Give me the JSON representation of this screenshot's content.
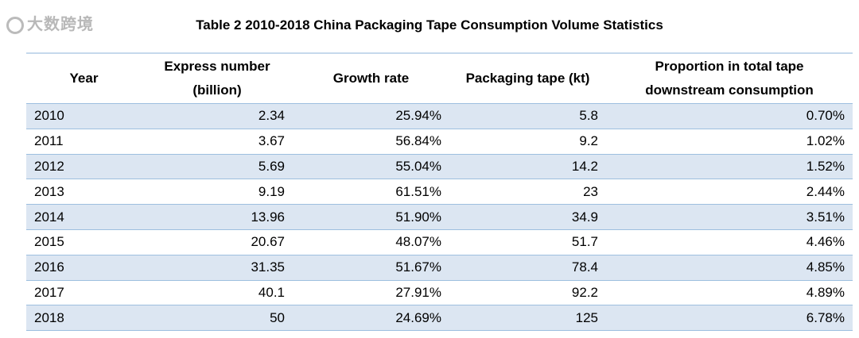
{
  "title": "Table 2 2010-2018 China Packaging Tape Consumption Volume Statistics",
  "headers": [
    "Year",
    "Express number (billion)",
    "Growth rate",
    "Packaging tape (kt)",
    "Proportion in total tape downstream consumption"
  ],
  "rows": [
    [
      "2010",
      "2.34",
      "25.94%",
      "5.8",
      "0.70%"
    ],
    [
      "2011",
      "3.67",
      "56.84%",
      "9.2",
      "1.02%"
    ],
    [
      "2012",
      "5.69",
      "55.04%",
      "14.2",
      "1.52%"
    ],
    [
      "2013",
      "9.19",
      "61.51%",
      "23",
      "2.44%"
    ],
    [
      "2014",
      "13.96",
      "51.90%",
      "34.9",
      "3.51%"
    ],
    [
      "2015",
      "20.67",
      "48.07%",
      "51.7",
      "4.46%"
    ],
    [
      "2016",
      "31.35",
      "51.67%",
      "78.4",
      "4.85%"
    ],
    [
      "2017",
      "40.1",
      "27.91%",
      "92.2",
      "4.89%"
    ],
    [
      "2018",
      "50",
      "24.69%",
      "125",
      "6.78%"
    ]
  ],
  "watermark": "大数跨境",
  "colors": {
    "row_band": "#dce6f2",
    "border": "#9dbfdf"
  }
}
